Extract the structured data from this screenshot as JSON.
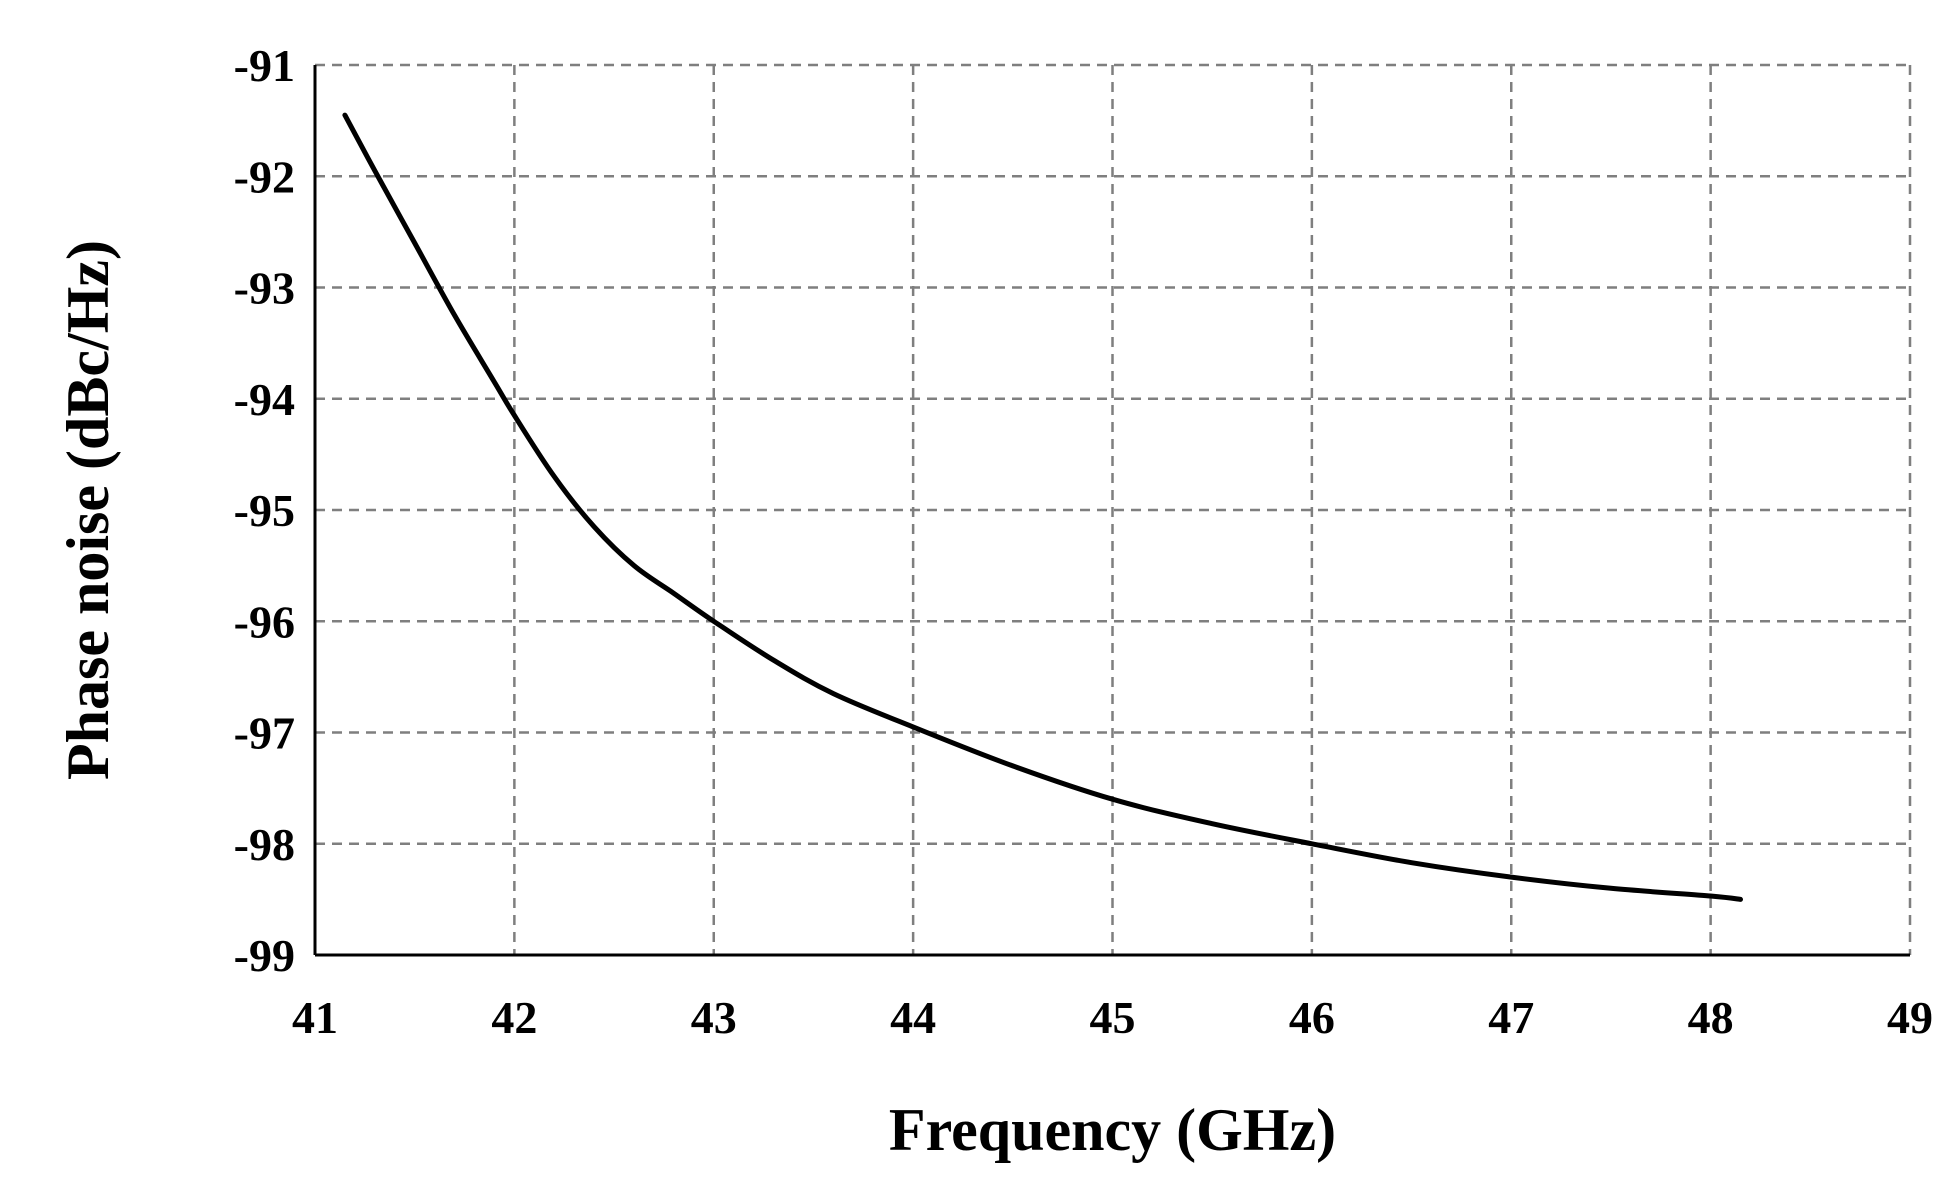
{
  "chart_data": {
    "type": "line",
    "title": "",
    "xlabel": "Frequency (GHz)",
    "ylabel": "Phase noise (dBc/Hz)",
    "xlim": [
      41,
      49
    ],
    "ylim": [
      -99,
      -91
    ],
    "xticks": [
      41,
      42,
      43,
      44,
      45,
      46,
      47,
      48,
      49
    ],
    "yticks": [
      -91,
      -92,
      -93,
      -94,
      -95,
      -96,
      -97,
      -98,
      -99
    ],
    "grid": true,
    "legend": "none",
    "line_color": "#000000",
    "series": [
      {
        "x": [
          41.15,
          41.3,
          41.5,
          41.7,
          41.9,
          42.0,
          42.2,
          42.4,
          42.6,
          42.8,
          43.0,
          43.3,
          43.6,
          44.0,
          44.5,
          45.0,
          45.5,
          46.0,
          46.5,
          47.0,
          47.5,
          48.0,
          48.15
        ],
        "y": [
          -91.45,
          -91.95,
          -92.6,
          -93.25,
          -93.85,
          -94.15,
          -94.7,
          -95.15,
          -95.5,
          -95.75,
          -96.0,
          -96.35,
          -96.65,
          -96.95,
          -97.3,
          -97.6,
          -97.82,
          -98.0,
          -98.17,
          -98.3,
          -98.4,
          -98.47,
          -98.5
        ]
      }
    ]
  }
}
